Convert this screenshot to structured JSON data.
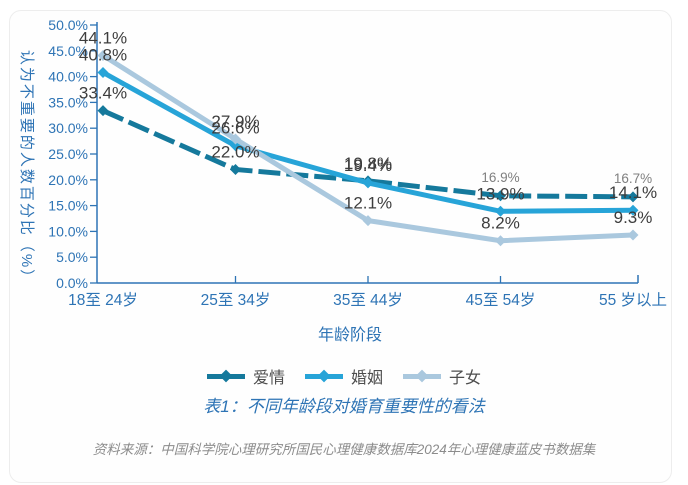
{
  "chart_data": {
    "type": "line",
    "title": "",
    "categories": [
      "18至 24岁",
      "25至 34岁",
      "35至 44岁",
      "45至 54岁",
      "55 岁以上"
    ],
    "xlabel": "年龄阶段",
    "ylabel": "认为不重要的人数百分比（%）",
    "ylim": [
      0,
      50
    ],
    "ytick_step": 5,
    "grid": false,
    "legend_position": "bottom",
    "axis_color": "#2e74b5",
    "label_color": "#3d3d3d",
    "small_label_color": "#7f7f7f",
    "series": [
      {
        "name": "爱情",
        "color": "#15799c",
        "dash": "22 6",
        "values": [
          33.4,
          22.0,
          19.8,
          16.9,
          16.7
        ],
        "labels": [
          "33.4%",
          "22.0%",
          "19.8%",
          "16.9%",
          "16.7%"
        ],
        "label_small": [
          false,
          false,
          false,
          true,
          true
        ]
      },
      {
        "name": "婚姻",
        "color": "#27a4d8",
        "dash": null,
        "values": [
          40.8,
          26.6,
          19.4,
          13.9,
          14.1
        ],
        "labels": [
          "40.8%",
          "26.6%",
          "19.4%",
          "13.9%",
          "14.1%"
        ],
        "label_small": [
          false,
          false,
          false,
          false,
          false
        ]
      },
      {
        "name": "子女",
        "color": "#aac8de",
        "dash": null,
        "values": [
          44.1,
          27.9,
          12.1,
          8.2,
          9.3
        ],
        "labels": [
          "44.1%",
          "27.9%",
          "12.1%",
          "8.2%",
          "9.3%"
        ],
        "label_small": [
          false,
          false,
          false,
          false,
          false
        ]
      }
    ]
  },
  "caption": "表1：不同年龄段对婚育重要性的看法",
  "source": "资料来源：中国科学院心理研究所国民心理健康数据库2024年心理健康蓝皮书数据集"
}
